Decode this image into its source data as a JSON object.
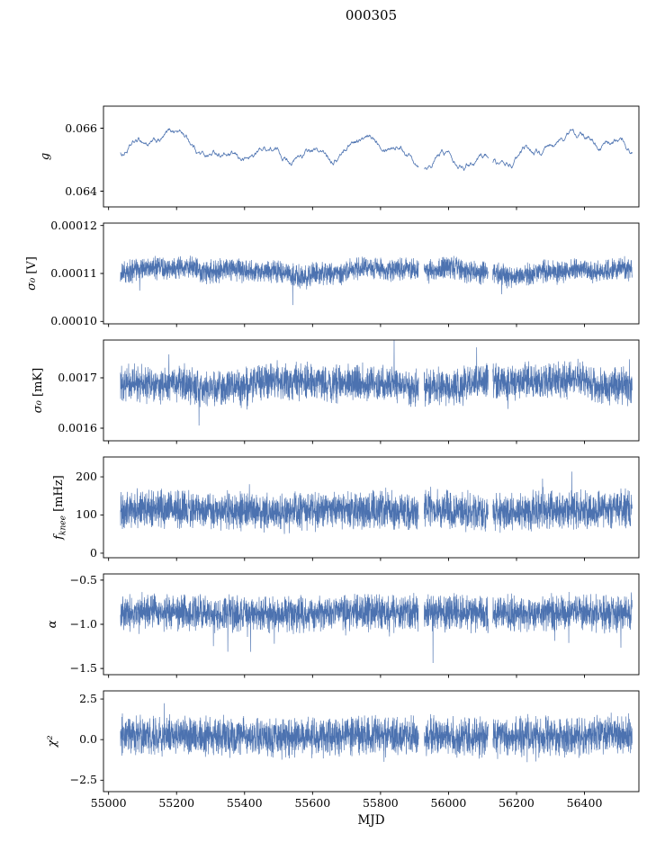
{
  "chart_data": {
    "type": "line",
    "title": "000305",
    "xlabel": "MJD",
    "x_range": [
      54985,
      56560
    ],
    "x_data_range": [
      55035,
      56540
    ],
    "x_ticks": [
      55000,
      55200,
      55400,
      55600,
      55800,
      56000,
      56200,
      56400
    ],
    "x_tick_labels": [
      "55000",
      "55200",
      "55400",
      "55600",
      "55800",
      "56000",
      "56200",
      "56400"
    ],
    "gaps": [
      [
        55912,
        55928
      ],
      [
        56117,
        56130
      ]
    ],
    "line_color": "#4c72b0",
    "grid": false,
    "legend": "none",
    "panels": [
      {
        "ylabel": "g",
        "style": "smooth",
        "ylim": [
          0.0635,
          0.0667
        ],
        "yticks": [
          0.064,
          0.066
        ],
        "ytick_labels": [
          "0.064",
          "0.066"
        ],
        "base": 0.0653,
        "slow_amp": 0.00055,
        "noise_amp": 0.00012,
        "spike_prob": 0,
        "spike_amp": 0,
        "spike_dir": "none"
      },
      {
        "ylabel": "σ₀ [V]",
        "style": "noisy",
        "ylim": [
          9.95e-05,
          0.0001205
        ],
        "yticks": [
          0.0001,
          0.00011,
          0.00012
        ],
        "ytick_labels": [
          "0.00010",
          "0.00011",
          "0.00012"
        ],
        "base": 0.0001105,
        "slow_amp": 1.2e-06,
        "noise_amp": 2.8e-06,
        "spike_prob": 0.002,
        "spike_amp": 4.5e-06,
        "spike_dir": "down"
      },
      {
        "ylabel": "σ₀ [mK]",
        "style": "noisy",
        "ylim": [
          0.001575,
          0.001775
        ],
        "yticks": [
          0.0016,
          0.0017
        ],
        "ytick_labels": [
          "0.0016",
          "0.0017"
        ],
        "base": 0.001688,
        "slow_amp": 1.2e-05,
        "noise_amp": 4.2e-05,
        "spike_prob": 0.005,
        "spike_amp": 5e-05,
        "spike_dir": "both"
      },
      {
        "ylabel": "f_knee [mHz]",
        "style": "noisy",
        "ylim": [
          -12,
          252
        ],
        "yticks": [
          0,
          100,
          200
        ],
        "ytick_labels": [
          "0",
          "100",
          "200"
        ],
        "base": 112,
        "slow_amp": 6,
        "noise_amp": 58,
        "spike_prob": 0.002,
        "spike_amp": 75,
        "spike_dir": "up"
      },
      {
        "ylabel": "α",
        "style": "noisy",
        "ylim": [
          -1.57,
          -0.43
        ],
        "yticks": [
          -1.5,
          -1.0,
          -0.5
        ],
        "ytick_labels": [
          "−1.5",
          "−1.0",
          "−0.5"
        ],
        "base": -0.87,
        "slow_amp": 0.02,
        "noise_amp": 0.24,
        "spike_prob": 0.004,
        "spike_amp": 0.42,
        "spike_dir": "down"
      },
      {
        "ylabel": "χ²",
        "style": "noisy",
        "ylim": [
          -3.2,
          3.0
        ],
        "yticks": [
          -2.5,
          0.0,
          2.5
        ],
        "ytick_labels": [
          "−2.5",
          "0.0",
          "2.5"
        ],
        "base": 0.2,
        "slow_amp": 0.1,
        "noise_amp": 1.4,
        "spike_prob": 0.005,
        "spike_amp": 1.1,
        "spike_dir": "both"
      }
    ]
  }
}
